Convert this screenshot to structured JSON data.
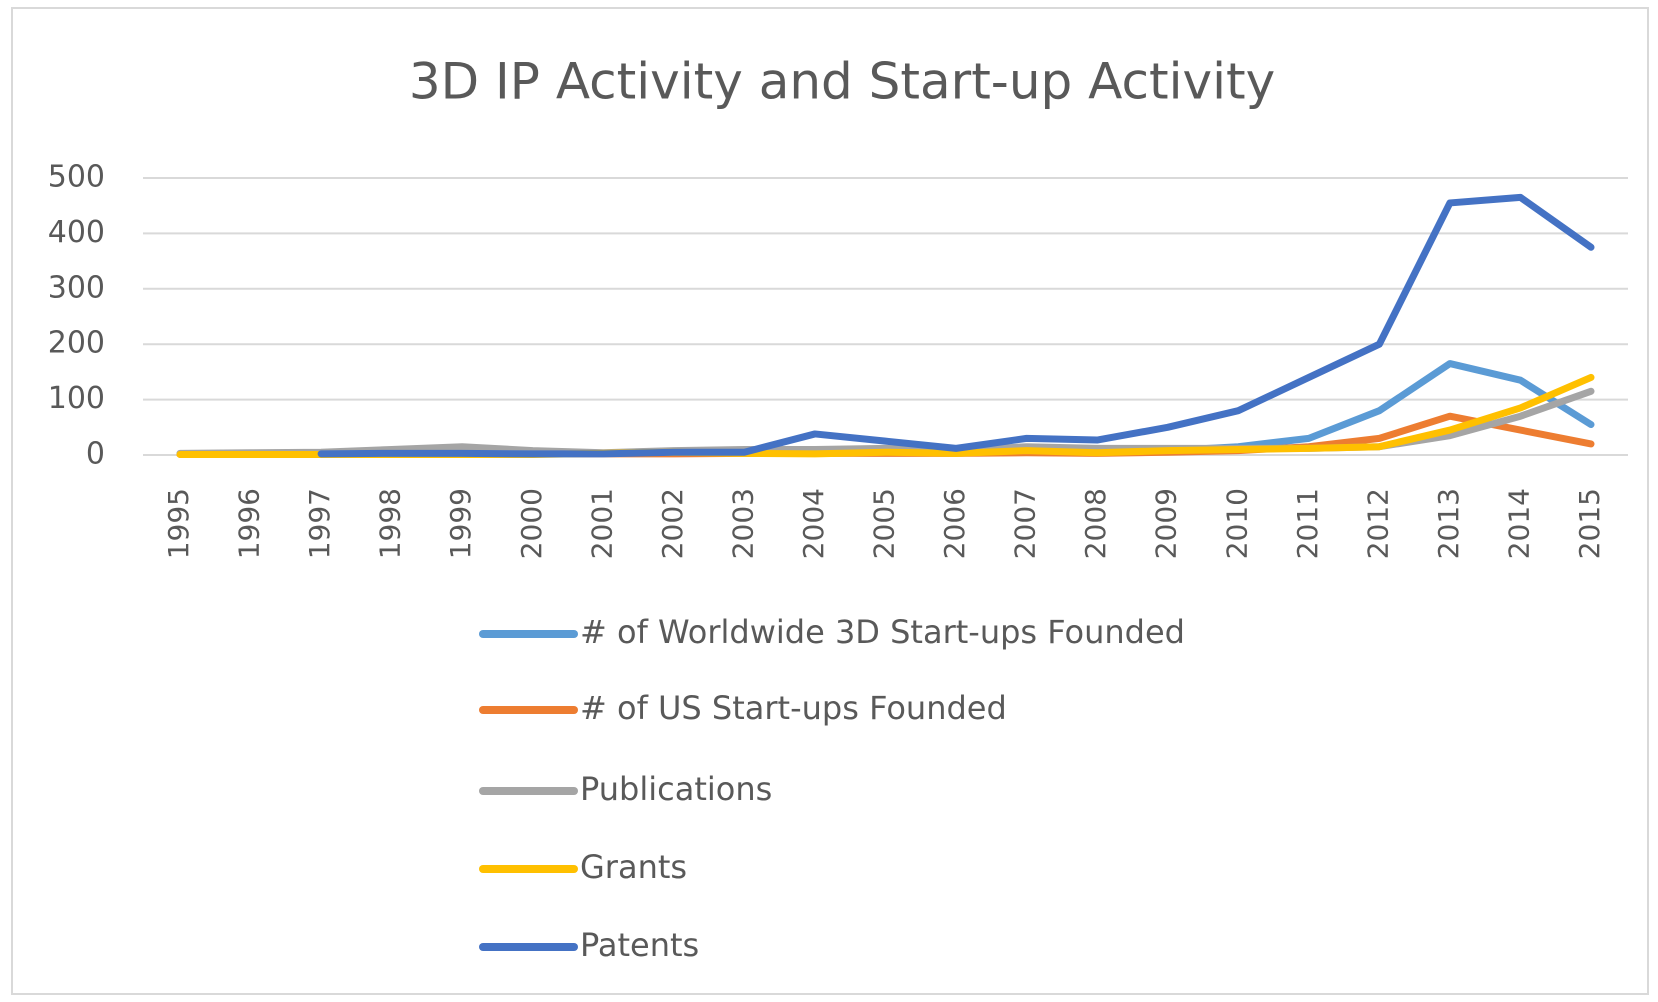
{
  "chart_data": {
    "type": "line",
    "title": "3D IP Activity and Start-up Activity",
    "categories": [
      "1995",
      "1996",
      "1997",
      "1998",
      "1999",
      "2000",
      "2001",
      "2002",
      "2003",
      "2004",
      "2005",
      "2006",
      "2007",
      "2008",
      "2009",
      "2010",
      "2011",
      "2012",
      "2013",
      "2014",
      "2015"
    ],
    "ylim": [
      0,
      500
    ],
    "yticks": [
      0,
      100,
      200,
      300,
      400,
      500
    ],
    "grid": true,
    "legend": "bottom",
    "series": [
      {
        "name": "# of Worldwide 3D Start-ups Founded",
        "color": "#5b9bd5",
        "values": [
          2,
          2,
          3,
          4,
          5,
          4,
          3,
          4,
          5,
          6,
          6,
          5,
          7,
          6,
          8,
          15,
          30,
          80,
          165,
          135,
          55
        ]
      },
      {
        "name": "# of US Start-ups Founded",
        "color": "#ed7d31",
        "values": [
          1,
          1,
          2,
          2,
          3,
          2,
          2,
          2,
          3,
          3,
          3,
          3,
          4,
          3,
          5,
          8,
          15,
          30,
          70,
          45,
          20
        ]
      },
      {
        "name": "Publications",
        "color": "#a5a5a5",
        "values": [
          3,
          4,
          5,
          10,
          15,
          8,
          4,
          8,
          10,
          10,
          12,
          8,
          15,
          12,
          12,
          12,
          12,
          15,
          35,
          70,
          115
        ]
      },
      {
        "name": "Grants",
        "color": "#ffc000",
        "values": [
          1,
          1,
          1,
          1,
          1,
          1,
          3,
          5,
          3,
          2,
          5,
          3,
          8,
          4,
          8,
          10,
          12,
          15,
          45,
          85,
          140
        ]
      },
      {
        "name": "Patents",
        "color": "#4472c4",
        "values": [
          null,
          null,
          2,
          3,
          3,
          2,
          2,
          5,
          5,
          38,
          25,
          12,
          30,
          27,
          50,
          80,
          140,
          200,
          455,
          465,
          375
        ]
      }
    ]
  }
}
